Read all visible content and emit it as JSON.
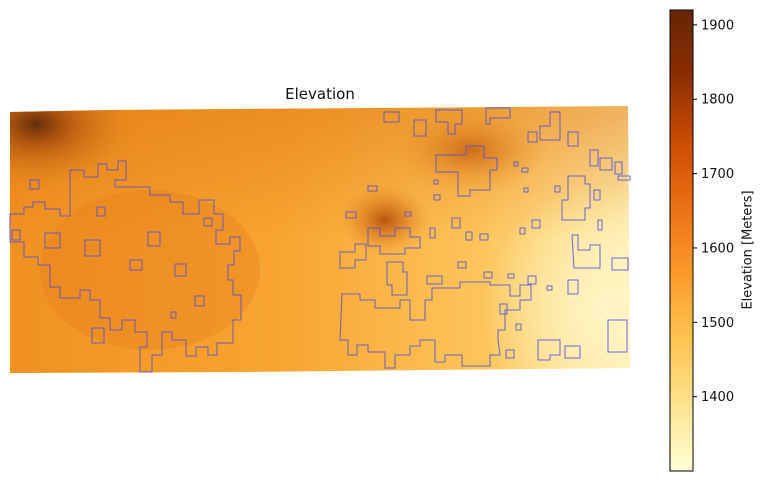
{
  "title": "Elevation",
  "colorbar": {
    "label": "Elevation [Meters]",
    "min": 1300,
    "max": 1920,
    "ticks": [
      1400,
      1500,
      1600,
      1700,
      1800,
      1900
    ],
    "tick_labels": [
      "1400",
      "1500",
      "1600",
      "1700",
      "1800",
      "1900"
    ],
    "colormap": [
      "#ffffd4",
      "#fee391",
      "#fec44f",
      "#fe9929",
      "#ec7014",
      "#cc4c02",
      "#8c2d04",
      "#662506"
    ]
  },
  "boundary_color": "#5050dd"
}
